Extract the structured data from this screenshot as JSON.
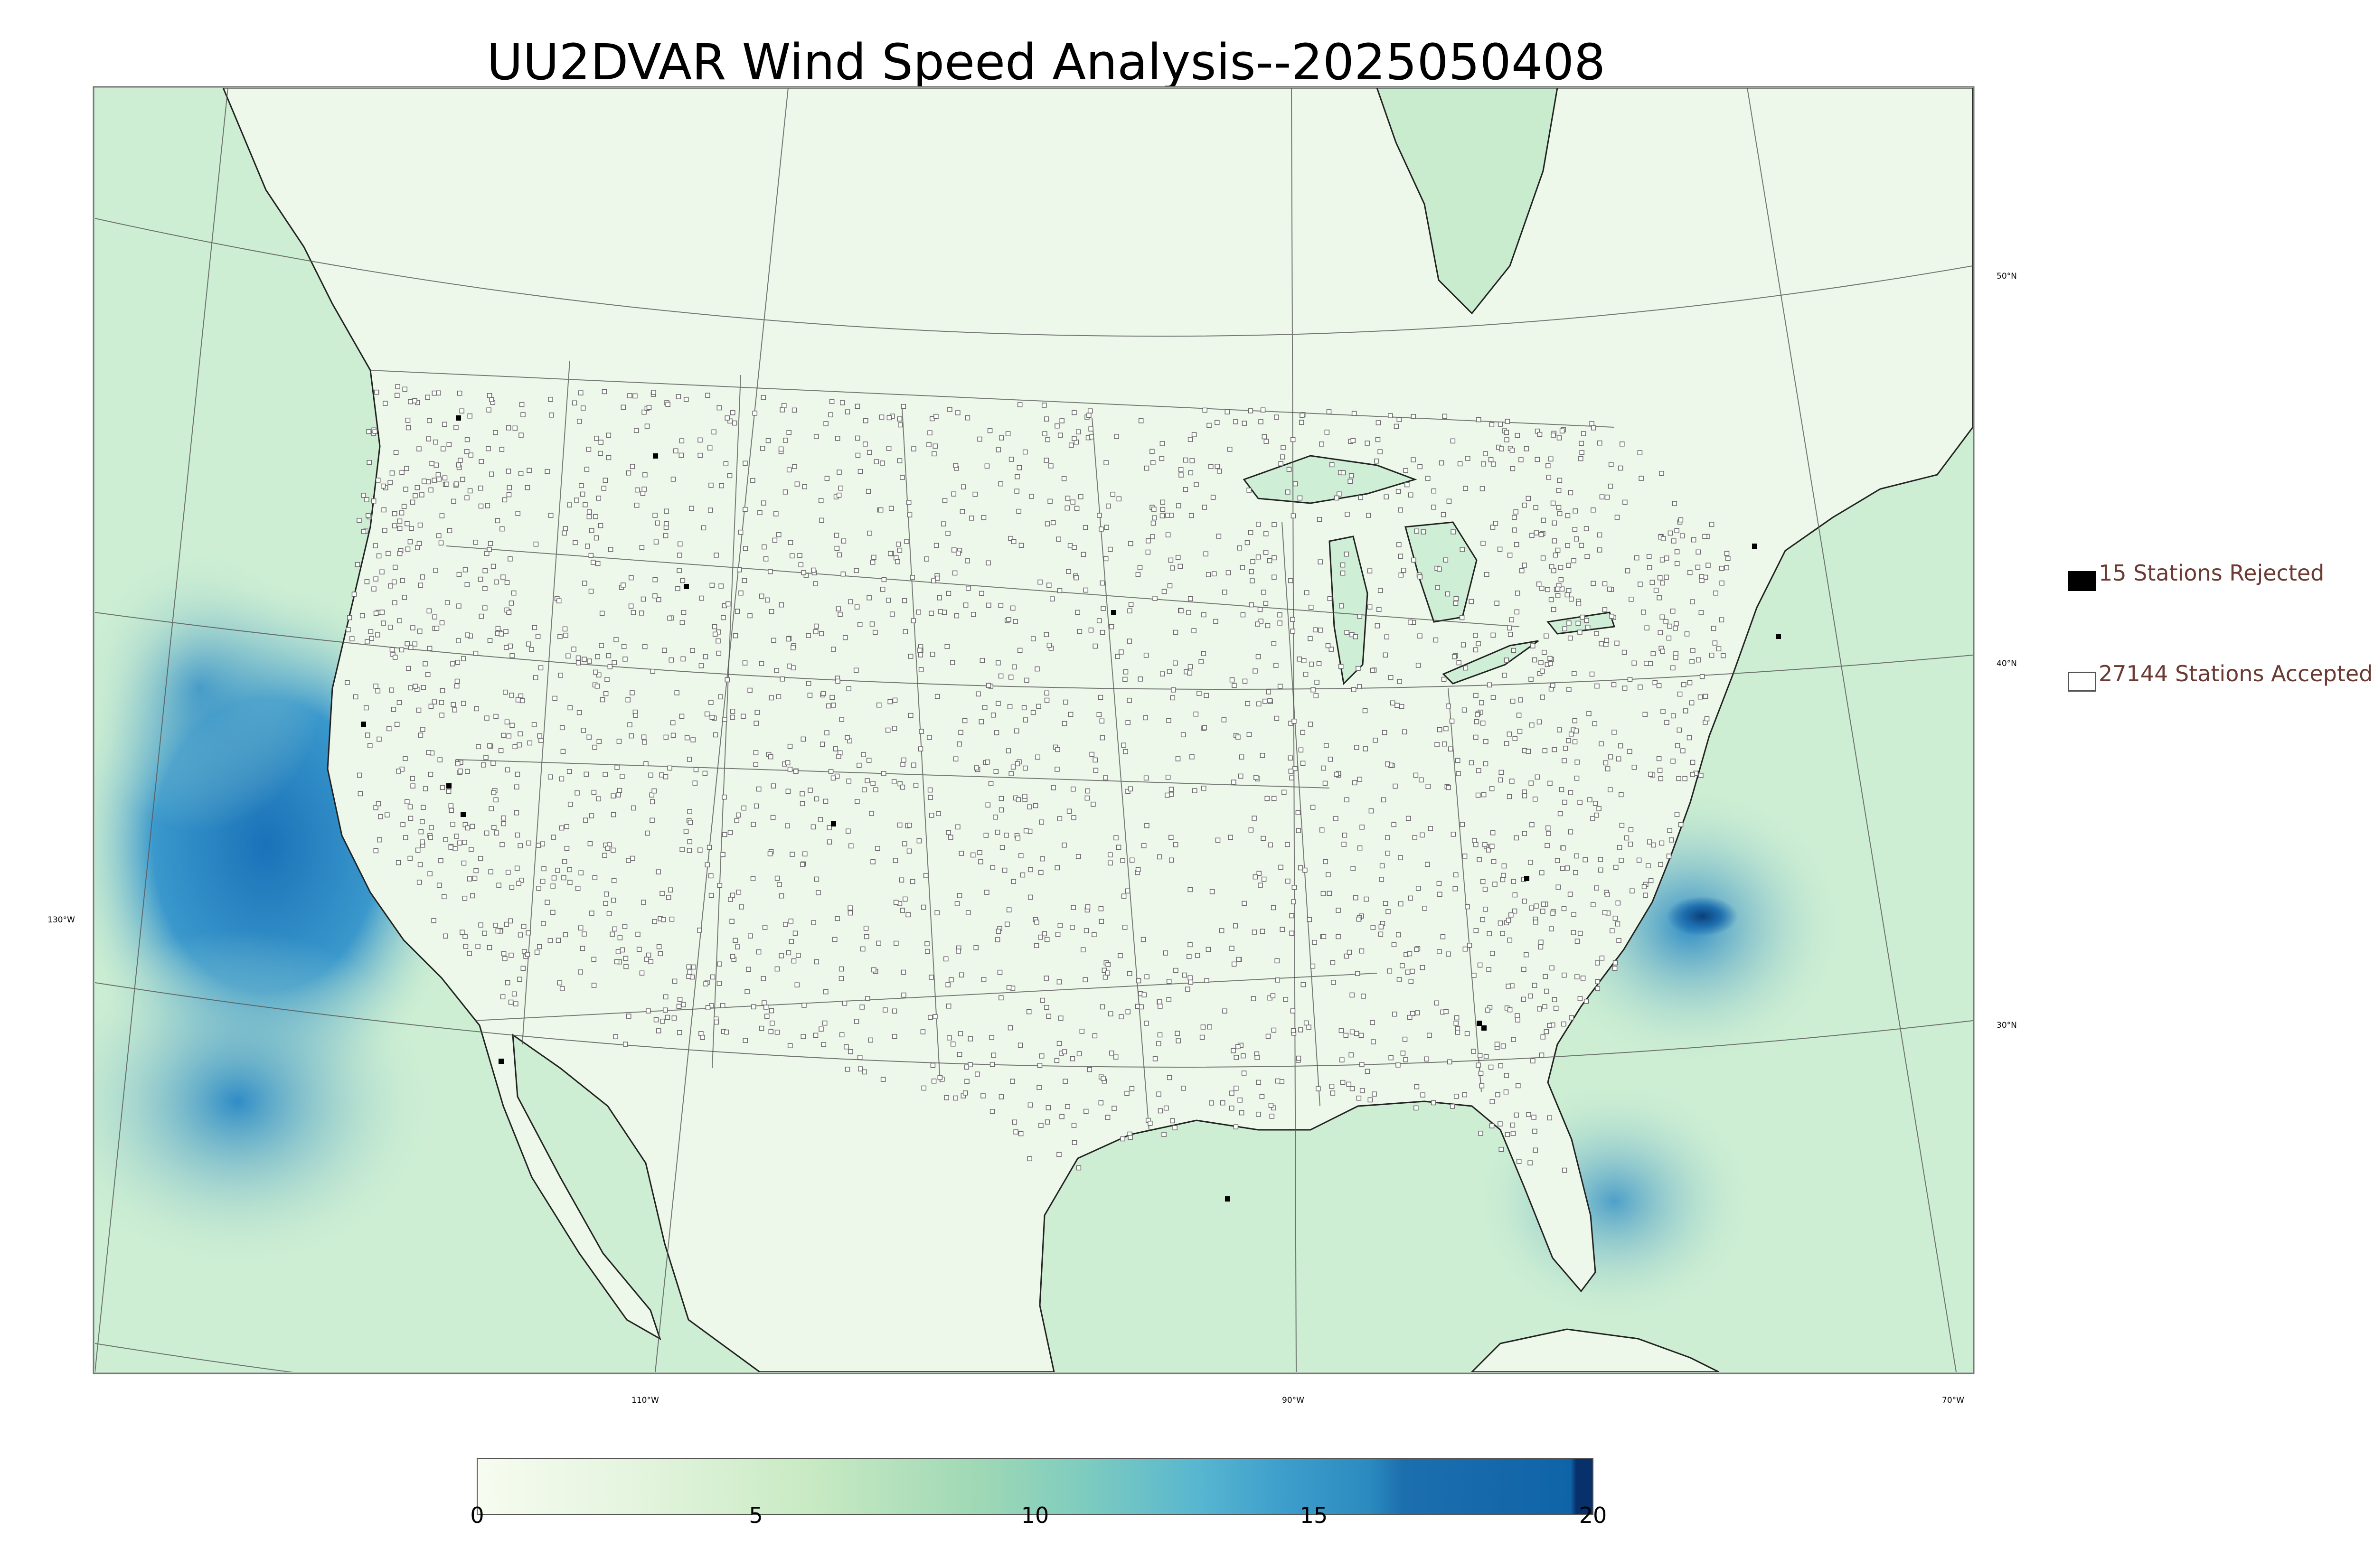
{
  "title": "UU2DVAR Wind Speed Analysis--2025050408",
  "legend": {
    "rejected_label": "15 Stations Rejected",
    "accepted_label": "27144 Stations Accepted"
  },
  "graticule": {
    "lat_labels": [
      "50°N",
      "40°N",
      "30°N"
    ],
    "lon_labels": [
      "130°W",
      "110°W",
      "90°W",
      "70°W"
    ]
  },
  "colorbar": {
    "ticks": [
      "0",
      "5",
      "10",
      "15",
      "20"
    ],
    "colors": [
      "#f7fcf0",
      "#e6f5e1",
      "#d0ecc9",
      "#b7e2b4",
      "#9cd5b0",
      "#7fcbbb",
      "#5fbccc",
      "#43a6cc",
      "#2b8cbe",
      "#1b70ad",
      "#0c5ba0",
      "#08306b"
    ]
  },
  "colors": {
    "land": "#eaf6e4",
    "ocean": "#c9eccf",
    "strong_wind": "#1c7bc0",
    "station_marker": "#666666",
    "legend_text": "#6b3a32"
  }
}
